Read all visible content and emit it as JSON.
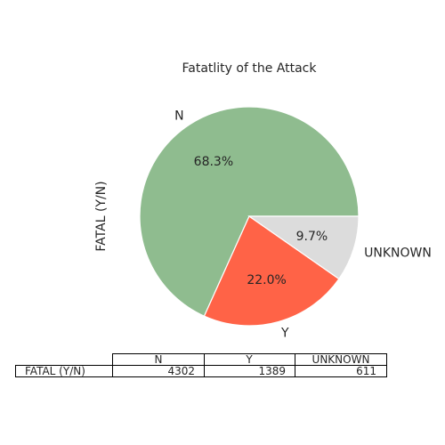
{
  "chart_data": {
    "type": "pie",
    "title": "Fatatlity of the Attack",
    "ylabel": "FATAL (Y/N)",
    "categories": [
      "N",
      "Y",
      "UNKNOWN"
    ],
    "values": [
      4302,
      1389,
      611
    ],
    "percent_labels": [
      "68.3%",
      "22.0%",
      "9.7%"
    ],
    "colors": [
      "#8fbc8f",
      "#ff6347",
      "#dcdcdc"
    ],
    "table": {
      "columns": [
        "N",
        "Y",
        "UNKNOWN"
      ],
      "row_label": "FATAL (Y/N)",
      "row_values": [
        "4302",
        "1389",
        "611"
      ]
    }
  }
}
